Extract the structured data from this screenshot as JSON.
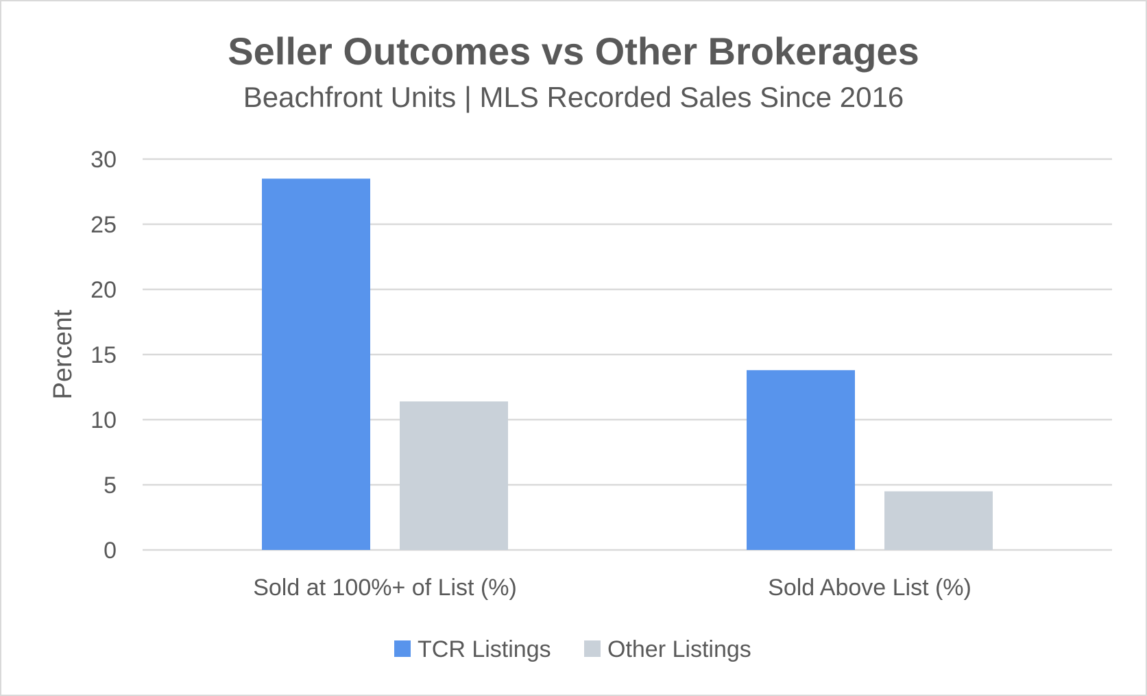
{
  "colors": {
    "tcr": "#5894ec",
    "other": "#c9d1d9",
    "grid": "#d9d9d9",
    "text": "#595959"
  },
  "chart_data": {
    "type": "bar",
    "title": "Seller Outcomes vs Other Brokerages",
    "subtitle": "Beachfront Units | MLS Recorded Sales Since 2016",
    "xlabel": "",
    "ylabel": "Percent",
    "categories": [
      "Sold at 100%+ of List (%)",
      "Sold Above List (%)"
    ],
    "series": [
      {
        "name": "TCR Listings",
        "values": [
          28.5,
          13.8
        ]
      },
      {
        "name": "Other Listings",
        "values": [
          11.4,
          4.5
        ]
      }
    ],
    "ylim": [
      0,
      30
    ],
    "yticks": [
      "0",
      "5",
      "10",
      "15",
      "20",
      "25",
      "30"
    ],
    "grid": true,
    "legend": "bottom"
  }
}
